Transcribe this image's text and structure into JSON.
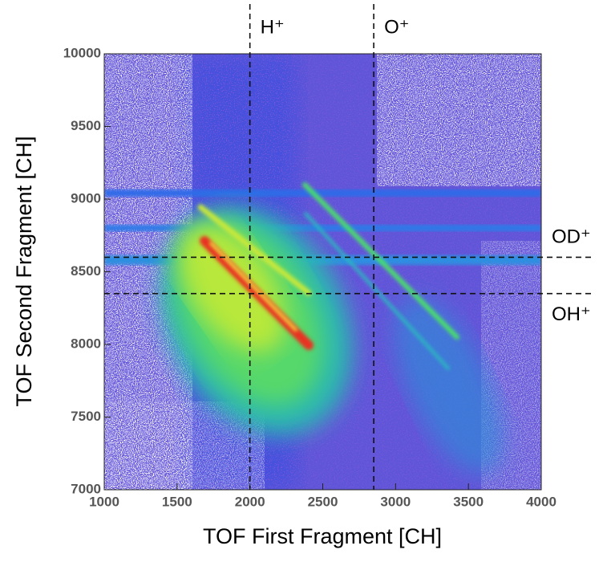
{
  "chart_data": {
    "type": "heatmap",
    "xlabel": "TOF First Fragment [CH]",
    "ylabel": "TOF Second Fragment [CH]",
    "xlim": [
      1000,
      4000
    ],
    "xticks": [
      1000,
      1500,
      2000,
      2500,
      3000,
      3500,
      4000
    ],
    "ylim": [
      7000,
      10000
    ],
    "yticks": [
      7000,
      7500,
      8000,
      8500,
      9000,
      9500,
      10000
    ],
    "vlines": [
      {
        "label": "H⁺",
        "x": 2000
      },
      {
        "label": "O⁺",
        "x": 2850
      }
    ],
    "hlines": [
      {
        "label": "OD⁺",
        "y": 8600
      },
      {
        "label": "OH⁺",
        "y": 8350
      }
    ]
  }
}
